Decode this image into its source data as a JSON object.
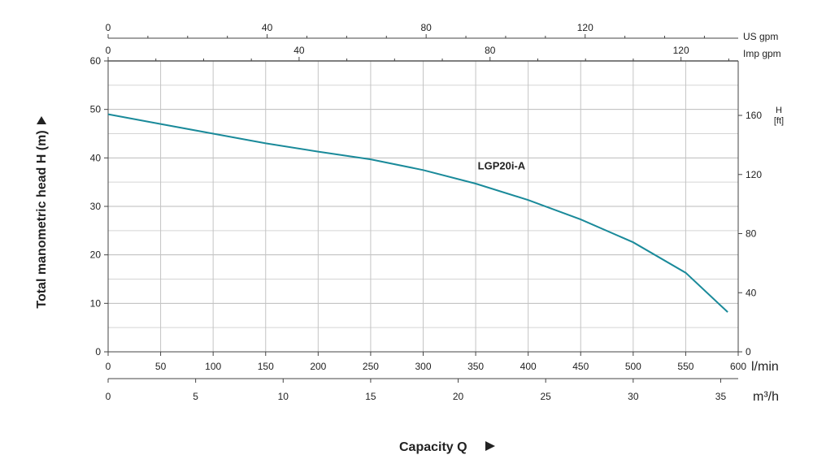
{
  "chart_data": {
    "type": "line",
    "title": "",
    "xlabel": "Capacity Q",
    "ylabel": "Total manometric head H (m)",
    "x_unit": "l/min",
    "x_secondary_unit": "m³/h",
    "x_top_units": [
      "US gpm",
      "Imp gpm"
    ],
    "y_right_label": "H",
    "y_right_unit": "[ft]",
    "xlim": [
      0,
      600
    ],
    "ylim": [
      0,
      60
    ],
    "x_ticks": [
      0,
      50,
      100,
      150,
      200,
      250,
      300,
      350,
      400,
      450,
      500,
      550,
      600
    ],
    "y_ticks": [
      0,
      10,
      20,
      30,
      40,
      50,
      60
    ],
    "m3h_ticks": [
      0,
      5,
      10,
      15,
      20,
      25,
      30,
      35
    ],
    "usgpm_ticks": [
      0,
      40,
      80,
      120
    ],
    "impgpm_ticks": [
      0,
      40,
      80,
      120
    ],
    "ft_ticks": [
      0,
      40,
      80,
      120,
      160
    ],
    "grid": true,
    "series": [
      {
        "name": "LGP20i-A",
        "color": "#1a8a9a",
        "x": [
          0,
          50,
          100,
          150,
          200,
          250,
          300,
          350,
          400,
          450,
          500,
          550,
          590
        ],
        "y": [
          49,
          47,
          45,
          43,
          41.3,
          39.7,
          37.5,
          34.7,
          31.3,
          27.3,
          22.6,
          16.3,
          8.2
        ]
      }
    ]
  }
}
